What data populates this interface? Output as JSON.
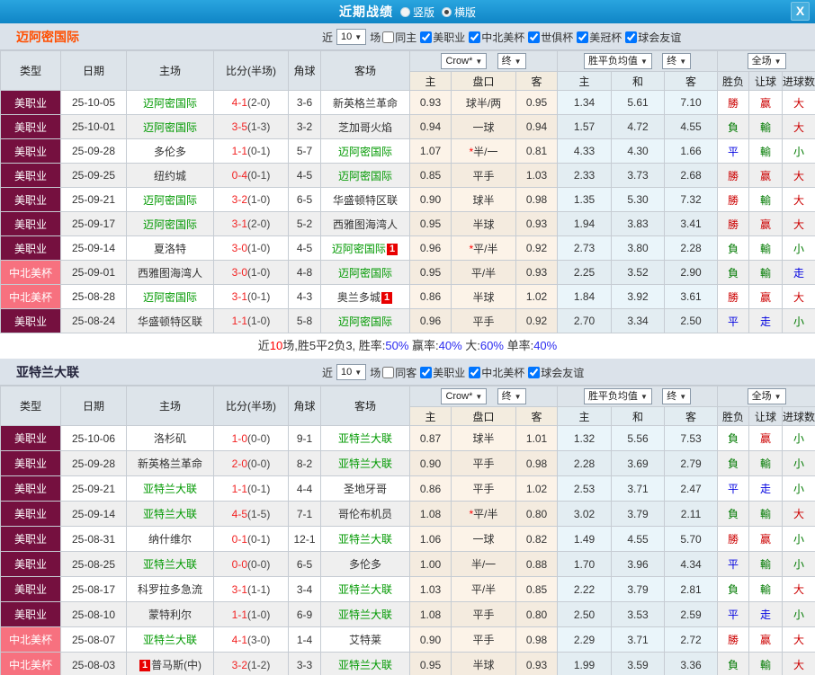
{
  "titlebar": {
    "title": "近期战绩",
    "opt_vertical": "竖版",
    "opt_horizontal": "横版",
    "selected": "横版",
    "close": "X"
  },
  "colors": {
    "titlebar_blue": "#1995d0",
    "mls_badge": "#75103f",
    "concacaf_badge": "#f7717f",
    "team_link_green": "#009900",
    "win_red": "#cc0000",
    "lose_green": "#007a00",
    "draw_blue": "#0000e0",
    "score_red": "#f22222",
    "summary_blue": "#2a2af0",
    "team_title_orange": "#ff4e00"
  },
  "table_header": {
    "cols": [
      "类型",
      "日期",
      "主场",
      "比分(半场)",
      "角球",
      "客场"
    ],
    "dd_company": "Crow*",
    "dd_final1": "终",
    "dd_avg": "胜平负均值",
    "dd_final2": "终",
    "dd_scope": "全场",
    "sub_odds": [
      "主",
      "盘口",
      "客"
    ],
    "sub_avg": [
      "主",
      "和",
      "客"
    ],
    "sub_res": [
      "胜负",
      "让球",
      "进球数"
    ]
  },
  "filter_labels": {
    "near": "近",
    "count": "10",
    "games": "场"
  },
  "sections": [
    {
      "team": "迈阿密国际",
      "team_style": "orange",
      "same_venue": {
        "label": "同主",
        "checked": false
      },
      "leagues": [
        {
          "label": "美职业",
          "checked": true
        },
        {
          "label": "中北美杯",
          "checked": true
        },
        {
          "label": "世俱杯",
          "checked": true
        },
        {
          "label": "美冠杯",
          "checked": true
        },
        {
          "label": "球会友谊",
          "checked": true
        }
      ],
      "rows": [
        {
          "lg": "美职业",
          "lgc": "mls",
          "date": "25-10-05",
          "home": {
            "n": "迈阿密国际",
            "g": true
          },
          "score": "4-1",
          "half": "(2-0)",
          "cor": "3-6",
          "away": {
            "n": "新英格兰革命",
            "g": false
          },
          "o1": "0.93",
          "pan": "球半/两",
          "star": false,
          "o2": "0.95",
          "m": [
            "1.34",
            "5.61",
            "7.10"
          ],
          "res": [
            [
              "勝",
              "w"
            ],
            [
              "赢",
              "w"
            ],
            [
              "大",
              "w"
            ]
          ]
        },
        {
          "lg": "美职业",
          "lgc": "mls",
          "date": "25-10-01",
          "home": {
            "n": "迈阿密国际",
            "g": true
          },
          "score": "3-5",
          "half": "(1-3)",
          "cor": "3-2",
          "away": {
            "n": "芝加哥火焰",
            "g": false
          },
          "o1": "0.94",
          "pan": "一球",
          "star": false,
          "o2": "0.94",
          "m": [
            "1.57",
            "4.72",
            "4.55"
          ],
          "res": [
            [
              "負",
              "l"
            ],
            [
              "輸",
              "l"
            ],
            [
              "大",
              "w"
            ]
          ]
        },
        {
          "lg": "美职业",
          "lgc": "mls",
          "date": "25-09-28",
          "home": {
            "n": "多伦多",
            "g": false
          },
          "score": "1-1",
          "half": "(0-1)",
          "cor": "5-7",
          "away": {
            "n": "迈阿密国际",
            "g": true
          },
          "o1": "1.07",
          "pan": "半/一",
          "star": true,
          "o2": "0.81",
          "m": [
            "4.33",
            "4.30",
            "1.66"
          ],
          "res": [
            [
              "平",
              "d"
            ],
            [
              "輸",
              "l"
            ],
            [
              "小",
              "l"
            ]
          ]
        },
        {
          "lg": "美职业",
          "lgc": "mls",
          "date": "25-09-25",
          "home": {
            "n": "纽约城",
            "g": false
          },
          "score": "0-4",
          "half": "(0-1)",
          "cor": "4-5",
          "away": {
            "n": "迈阿密国际",
            "g": true
          },
          "o1": "0.85",
          "pan": "平手",
          "star": false,
          "o2": "1.03",
          "m": [
            "2.33",
            "3.73",
            "2.68"
          ],
          "res": [
            [
              "勝",
              "w"
            ],
            [
              "赢",
              "w"
            ],
            [
              "大",
              "w"
            ]
          ]
        },
        {
          "lg": "美职业",
          "lgc": "mls",
          "date": "25-09-21",
          "home": {
            "n": "迈阿密国际",
            "g": true
          },
          "score": "3-2",
          "half": "(1-0)",
          "cor": "6-5",
          "away": {
            "n": "华盛顿特区联",
            "g": false
          },
          "o1": "0.90",
          "pan": "球半",
          "star": false,
          "o2": "0.98",
          "m": [
            "1.35",
            "5.30",
            "7.32"
          ],
          "res": [
            [
              "勝",
              "w"
            ],
            [
              "輸",
              "l"
            ],
            [
              "大",
              "w"
            ]
          ]
        },
        {
          "lg": "美职业",
          "lgc": "mls",
          "date": "25-09-17",
          "home": {
            "n": "迈阿密国际",
            "g": true
          },
          "score": "3-1",
          "half": "(2-0)",
          "cor": "5-2",
          "away": {
            "n": "西雅图海湾人",
            "g": false
          },
          "o1": "0.95",
          "pan": "半球",
          "star": false,
          "o2": "0.93",
          "m": [
            "1.94",
            "3.83",
            "3.41"
          ],
          "res": [
            [
              "勝",
              "w"
            ],
            [
              "赢",
              "w"
            ],
            [
              "大",
              "w"
            ]
          ]
        },
        {
          "lg": "美职业",
          "lgc": "mls",
          "date": "25-09-14",
          "home": {
            "n": "夏洛特",
            "g": false
          },
          "score": "3-0",
          "half": "(1-0)",
          "cor": "4-5",
          "away": {
            "n": "迈阿密国际",
            "g": true,
            "b": "1"
          },
          "o1": "0.96",
          "pan": "平/半",
          "star": true,
          "o2": "0.92",
          "m": [
            "2.73",
            "3.80",
            "2.28"
          ],
          "res": [
            [
              "負",
              "l"
            ],
            [
              "輸",
              "l"
            ],
            [
              "小",
              "l"
            ]
          ]
        },
        {
          "lg": "中北美杯",
          "lgc": "concacaf",
          "date": "25-09-01",
          "home": {
            "n": "西雅图海湾人",
            "g": false
          },
          "score": "3-0",
          "half": "(1-0)",
          "cor": "4-8",
          "away": {
            "n": "迈阿密国际",
            "g": true
          },
          "o1": "0.95",
          "pan": "平/半",
          "star": false,
          "o2": "0.93",
          "m": [
            "2.25",
            "3.52",
            "2.90"
          ],
          "res": [
            [
              "負",
              "l"
            ],
            [
              "輸",
              "l"
            ],
            [
              "走",
              "d"
            ]
          ]
        },
        {
          "lg": "中北美杯",
          "lgc": "concacaf",
          "date": "25-08-28",
          "home": {
            "n": "迈阿密国际",
            "g": true
          },
          "score": "3-1",
          "half": "(0-1)",
          "cor": "4-3",
          "away": {
            "n": "奥兰多城",
            "g": false,
            "b": "1"
          },
          "o1": "0.86",
          "pan": "半球",
          "star": false,
          "o2": "1.02",
          "m": [
            "1.84",
            "3.92",
            "3.61"
          ],
          "res": [
            [
              "勝",
              "w"
            ],
            [
              "赢",
              "w"
            ],
            [
              "大",
              "w"
            ]
          ]
        },
        {
          "lg": "美职业",
          "lgc": "mls",
          "date": "25-08-24",
          "home": {
            "n": "华盛顿特区联",
            "g": false
          },
          "score": "1-1",
          "half": "(1-0)",
          "cor": "5-8",
          "away": {
            "n": "迈阿密国际",
            "g": true
          },
          "o1": "0.96",
          "pan": "平手",
          "star": false,
          "o2": "0.92",
          "m": [
            "2.70",
            "3.34",
            "2.50"
          ],
          "res": [
            [
              "平",
              "d"
            ],
            [
              "走",
              "d"
            ],
            [
              "小",
              "l"
            ]
          ]
        }
      ],
      "summary": [
        [
          "近",
          "k"
        ],
        [
          "10",
          "r"
        ],
        [
          "场,胜5平2负3, 胜率:",
          "k"
        ],
        [
          "50%",
          "b"
        ],
        [
          " 赢率:",
          "k"
        ],
        [
          "40%",
          "b"
        ],
        [
          " 大:",
          "k"
        ],
        [
          "60%",
          "b"
        ],
        [
          " 单率:",
          "k"
        ],
        [
          "40%",
          "b"
        ]
      ]
    },
    {
      "team": "亚特兰大联",
      "team_style": "dark",
      "same_venue": {
        "label": "同客",
        "checked": false
      },
      "leagues": [
        {
          "label": "美职业",
          "checked": true
        },
        {
          "label": "中北美杯",
          "checked": true
        },
        {
          "label": "球会友谊",
          "checked": true
        }
      ],
      "rows": [
        {
          "lg": "美职业",
          "lgc": "mls",
          "date": "25-10-06",
          "home": {
            "n": "洛杉矶",
            "g": false
          },
          "score": "1-0",
          "half": "(0-0)",
          "cor": "9-1",
          "away": {
            "n": "亚特兰大联",
            "g": true
          },
          "o1": "0.87",
          "pan": "球半",
          "star": false,
          "o2": "1.01",
          "m": [
            "1.32",
            "5.56",
            "7.53"
          ],
          "res": [
            [
              "負",
              "l"
            ],
            [
              "赢",
              "w"
            ],
            [
              "小",
              "l"
            ]
          ]
        },
        {
          "lg": "美职业",
          "lgc": "mls",
          "date": "25-09-28",
          "home": {
            "n": "新英格兰革命",
            "g": false
          },
          "score": "2-0",
          "half": "(0-0)",
          "cor": "8-2",
          "away": {
            "n": "亚特兰大联",
            "g": true
          },
          "o1": "0.90",
          "pan": "平手",
          "star": false,
          "o2": "0.98",
          "m": [
            "2.28",
            "3.69",
            "2.79"
          ],
          "res": [
            [
              "負",
              "l"
            ],
            [
              "輸",
              "l"
            ],
            [
              "小",
              "l"
            ]
          ]
        },
        {
          "lg": "美职业",
          "lgc": "mls",
          "date": "25-09-21",
          "home": {
            "n": "亚特兰大联",
            "g": true
          },
          "score": "1-1",
          "half": "(0-1)",
          "cor": "4-4",
          "away": {
            "n": "圣地牙哥",
            "g": false
          },
          "o1": "0.86",
          "pan": "平手",
          "star": false,
          "o2": "1.02",
          "m": [
            "2.53",
            "3.71",
            "2.47"
          ],
          "res": [
            [
              "平",
              "d"
            ],
            [
              "走",
              "d"
            ],
            [
              "小",
              "l"
            ]
          ]
        },
        {
          "lg": "美职业",
          "lgc": "mls",
          "date": "25-09-14",
          "home": {
            "n": "亚特兰大联",
            "g": true
          },
          "score": "4-5",
          "half": "(1-5)",
          "cor": "7-1",
          "away": {
            "n": "哥伦布机员",
            "g": false
          },
          "o1": "1.08",
          "pan": "平/半",
          "star": true,
          "o2": "0.80",
          "m": [
            "3.02",
            "3.79",
            "2.11"
          ],
          "res": [
            [
              "負",
              "l"
            ],
            [
              "輸",
              "l"
            ],
            [
              "大",
              "w"
            ]
          ]
        },
        {
          "lg": "美职业",
          "lgc": "mls",
          "date": "25-08-31",
          "home": {
            "n": "纳什维尔",
            "g": false
          },
          "score": "0-1",
          "half": "(0-1)",
          "cor": "12-1",
          "away": {
            "n": "亚特兰大联",
            "g": true
          },
          "o1": "1.06",
          "pan": "一球",
          "star": false,
          "o2": "0.82",
          "m": [
            "1.49",
            "4.55",
            "5.70"
          ],
          "res": [
            [
              "勝",
              "w"
            ],
            [
              "赢",
              "w"
            ],
            [
              "小",
              "l"
            ]
          ]
        },
        {
          "lg": "美职业",
          "lgc": "mls",
          "date": "25-08-25",
          "home": {
            "n": "亚特兰大联",
            "g": true
          },
          "score": "0-0",
          "half": "(0-0)",
          "cor": "6-5",
          "away": {
            "n": "多伦多",
            "g": false
          },
          "o1": "1.00",
          "pan": "半/一",
          "star": false,
          "o2": "0.88",
          "m": [
            "1.70",
            "3.96",
            "4.34"
          ],
          "res": [
            [
              "平",
              "d"
            ],
            [
              "輸",
              "l"
            ],
            [
              "小",
              "l"
            ]
          ]
        },
        {
          "lg": "美职业",
          "lgc": "mls",
          "date": "25-08-17",
          "home": {
            "n": "科罗拉多急流",
            "g": false
          },
          "score": "3-1",
          "half": "(1-1)",
          "cor": "3-4",
          "away": {
            "n": "亚特兰大联",
            "g": true
          },
          "o1": "1.03",
          "pan": "平/半",
          "star": false,
          "o2": "0.85",
          "m": [
            "2.22",
            "3.79",
            "2.81"
          ],
          "res": [
            [
              "負",
              "l"
            ],
            [
              "輸",
              "l"
            ],
            [
              "大",
              "w"
            ]
          ]
        },
        {
          "lg": "美职业",
          "lgc": "mls",
          "date": "25-08-10",
          "home": {
            "n": "蒙特利尔",
            "g": false
          },
          "score": "1-1",
          "half": "(1-0)",
          "cor": "6-9",
          "away": {
            "n": "亚特兰大联",
            "g": true
          },
          "o1": "1.08",
          "pan": "平手",
          "star": false,
          "o2": "0.80",
          "m": [
            "2.50",
            "3.53",
            "2.59"
          ],
          "res": [
            [
              "平",
              "d"
            ],
            [
              "走",
              "d"
            ],
            [
              "小",
              "l"
            ]
          ]
        },
        {
          "lg": "中北美杯",
          "lgc": "concacaf",
          "date": "25-08-07",
          "home": {
            "n": "亚特兰大联",
            "g": true
          },
          "score": "4-1",
          "half": "(3-0)",
          "cor": "1-4",
          "away": {
            "n": "艾特莱",
            "g": false
          },
          "o1": "0.90",
          "pan": "平手",
          "star": false,
          "o2": "0.98",
          "m": [
            "2.29",
            "3.71",
            "2.72"
          ],
          "res": [
            [
              "勝",
              "w"
            ],
            [
              "赢",
              "w"
            ],
            [
              "大",
              "w"
            ]
          ]
        },
        {
          "lg": "中北美杯",
          "lgc": "concacaf",
          "date": "25-08-03",
          "home": {
            "n": "普马斯(中)",
            "g": false,
            "b": "1",
            "bpos": "before"
          },
          "score": "3-2",
          "half": "(1-2)",
          "cor": "3-3",
          "away": {
            "n": "亚特兰大联",
            "g": true
          },
          "o1": "0.95",
          "pan": "半球",
          "star": false,
          "o2": "0.93",
          "m": [
            "1.99",
            "3.59",
            "3.36"
          ],
          "res": [
            [
              "負",
              "l"
            ],
            [
              "輸",
              "l"
            ],
            [
              "大",
              "w"
            ]
          ]
        }
      ],
      "summary": null
    }
  ]
}
